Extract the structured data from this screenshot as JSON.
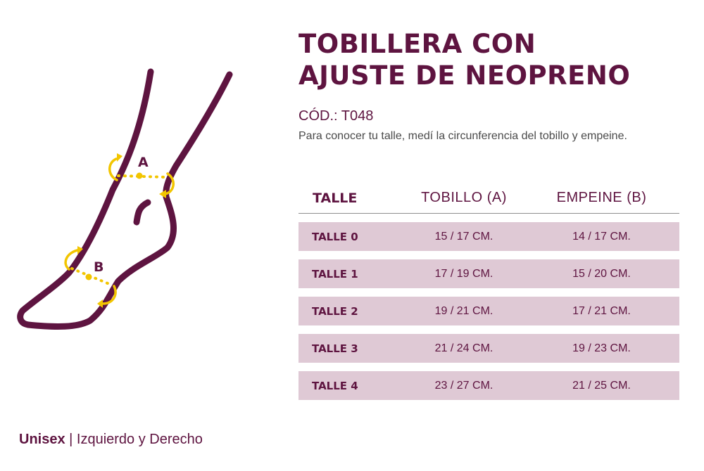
{
  "illustration": {
    "label_a": "A",
    "label_b": "B",
    "colors": {
      "outline": "#5e1440",
      "measure": "#f2c500"
    }
  },
  "header": {
    "title_line1": "TOBILLERA CON",
    "title_line2": "AJUSTE DE NEOPRENO",
    "code": "CÓD.: T048",
    "description": "Para conocer tu talle, medí la circunferencia del tobillo y empeine."
  },
  "table": {
    "headers": [
      "TALLE",
      "TOBILLO (A)",
      "EMPEINE (B)"
    ],
    "rows": [
      [
        "TALLE 0",
        "15 / 17 CM.",
        "14 / 17 CM."
      ],
      [
        "TALLE 1",
        "17 / 19 CM.",
        "15 / 20 CM."
      ],
      [
        "TALLE 2",
        "19 / 21 CM.",
        "17 / 21 CM."
      ],
      [
        "TALLE 3",
        "21 / 24 CM.",
        "19 / 23 CM."
      ],
      [
        "TALLE 4",
        "23 / 27 CM.",
        "21 / 25 CM."
      ]
    ]
  },
  "footer": {
    "bold": "Unisex",
    "separator": " | ",
    "text": "Izquierdo y Derecho"
  },
  "colors": {
    "brand": "#5e1440",
    "row_bg": "#dfc9d5",
    "accent": "#f2c500"
  }
}
